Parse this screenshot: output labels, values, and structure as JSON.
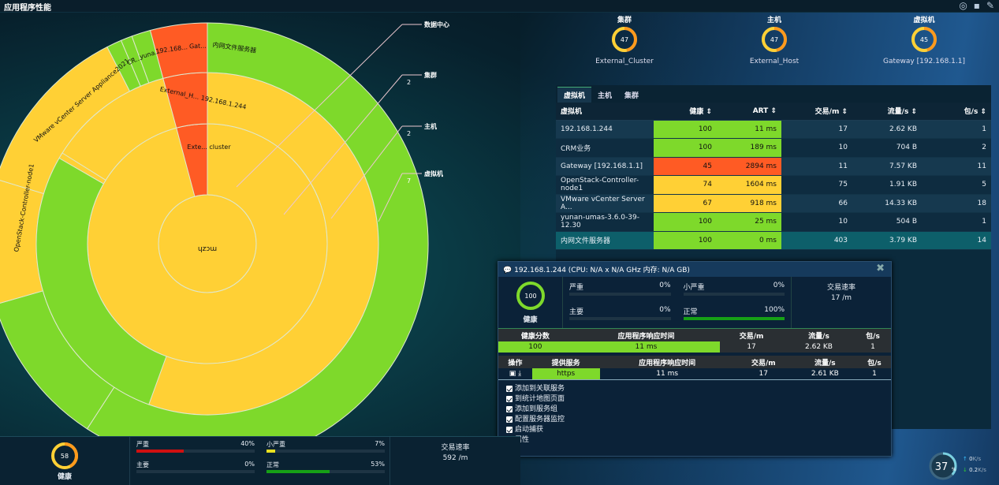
{
  "app": {
    "title": "应用程序性能"
  },
  "summary": [
    {
      "category": "集群",
      "value": "47",
      "name": "External_Cluster",
      "ring": "#ff9a1c"
    },
    {
      "category": "主机",
      "value": "47",
      "name": "External_Host",
      "ring": "#ff9a1c"
    },
    {
      "category": "虚拟机",
      "value": "45",
      "name": "Gateway [192.168.1.1]",
      "ring": "#ff9a1c"
    }
  ],
  "sunburst": {
    "labels": {
      "center": "mczh",
      "cluster": "Exte... cluster",
      "host": "External_H... 192.168.1.244",
      "vm_gateway": "Gat...",
      "vm_192": "192.168...",
      "vm_yuna": "yuna...",
      "vm_crm": "CR...",
      "vm_vmware": "VMware vCenter Server Appliance2021...",
      "vm_openstack": "OpenStack-Controller-node1",
      "vm_intranet": "内网文件服务器"
    },
    "legend": [
      {
        "label": "数据中心",
        "count": ""
      },
      {
        "label": "集群",
        "count": "2"
      },
      {
        "label": "主机",
        "count": "2"
      },
      {
        "label": "虚拟机",
        "count": "7"
      }
    ],
    "colors": {
      "green": "#7ed92b",
      "yellow": "#ffd035",
      "red": "#ff5b24"
    }
  },
  "table": {
    "tabs": [
      "虚拟机",
      "主机",
      "集群"
    ],
    "columns": [
      "虚拟机",
      "健康 ⇕",
      "ART ⇕",
      "交易/m ⇕",
      "流量/s ⇕",
      "包/s ⇕"
    ],
    "rows": [
      {
        "name": "192.168.1.244",
        "health": "100",
        "art": "11 ms",
        "tx": "17",
        "traffic": "2.62 KB",
        "pkts": "1",
        "status": "green"
      },
      {
        "name": "CRM业务",
        "health": "100",
        "art": "189 ms",
        "tx": "10",
        "traffic": "704 B",
        "pkts": "2",
        "status": "green"
      },
      {
        "name": "Gateway [192.168.1.1]",
        "health": "45",
        "art": "2894 ms",
        "tx": "11",
        "traffic": "7.57 KB",
        "pkts": "11",
        "status": "red"
      },
      {
        "name": "OpenStack-Controller-node1",
        "health": "74",
        "art": "1604 ms",
        "tx": "75",
        "traffic": "1.91 KB",
        "pkts": "5",
        "status": "yellow"
      },
      {
        "name": "VMware vCenter Server A...",
        "health": "67",
        "art": "918 ms",
        "tx": "66",
        "traffic": "14.33 KB",
        "pkts": "18",
        "status": "yellow"
      },
      {
        "name": "yunan-umas-3.6.0-39-12.30",
        "health": "100",
        "art": "25 ms",
        "tx": "10",
        "traffic": "504 B",
        "pkts": "1",
        "status": "green"
      },
      {
        "name": "内网文件服务器",
        "health": "100",
        "art": "0 ms",
        "tx": "403",
        "traffic": "3.79 KB",
        "pkts": "14",
        "status": "green"
      }
    ]
  },
  "popup": {
    "title": "192.168.1.244 (CPU: N/A x N/A GHz 内存: N/A GB)",
    "health_value": "100",
    "health_label": "健康",
    "severity": [
      {
        "label": "严重",
        "pct": "0%",
        "value": 0,
        "color": "#d01010"
      },
      {
        "label": "小严重",
        "pct": "0%",
        "value": 0,
        "color": "#e8d020"
      },
      {
        "label": "主要",
        "pct": "0%",
        "value": 0,
        "color": "#ff8a1c"
      },
      {
        "label": "正常",
        "pct": "100%",
        "value": 100,
        "color": "#16a016"
      }
    ],
    "rate_label": "交易速率",
    "rate_value": "17 /m",
    "summary_headers": [
      "健康分数",
      "应用程序响应时间",
      "交易/m",
      "流量/s",
      "包/s"
    ],
    "summary_values": [
      "100",
      "11 ms",
      "17",
      "2.62 KB",
      "1"
    ],
    "service_headers": [
      "操作",
      "提供服务",
      "应用程序响应时间",
      "交易/m",
      "流量/s",
      "包/s"
    ],
    "service_values": [
      "",
      "https",
      "11 ms",
      "17",
      "2.61 KB",
      "1"
    ],
    "menu": [
      "添加到关联服务",
      "到统计地图页面",
      "添加到服务组",
      "配置服务器监控",
      "启动捕获",
      "属性"
    ]
  },
  "bottom": {
    "health_value": "58",
    "health_label": "健康",
    "severity": [
      {
        "label": "严重",
        "pct": "40%",
        "value": 40,
        "color": "#d01010"
      },
      {
        "label": "小严重",
        "pct": "7%",
        "value": 7,
        "color": "#e8e020"
      },
      {
        "label": "主要",
        "pct": "0%",
        "value": 0,
        "color": "#ff8a1c"
      },
      {
        "label": "正常",
        "pct": "53%",
        "value": 53,
        "color": "#16a016"
      }
    ],
    "rate_label": "交易速率",
    "rate_value": "592 /m"
  },
  "network": {
    "cpu": "37",
    "unit": "%",
    "up": "0",
    "up_unit": "K/s",
    "down": "0.2",
    "down_unit": "K/s"
  }
}
